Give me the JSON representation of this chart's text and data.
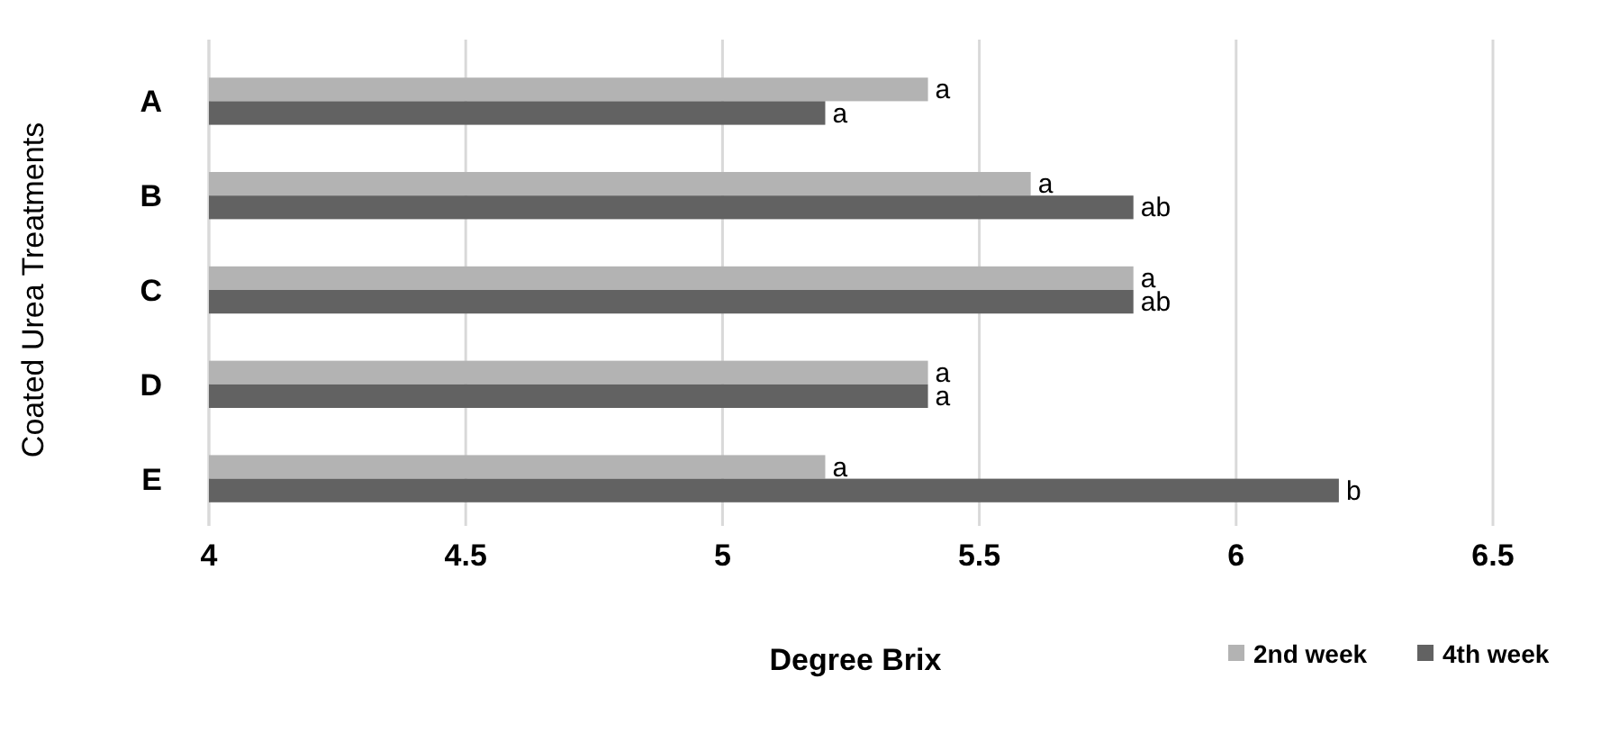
{
  "chart_data": {
    "type": "bar",
    "orientation": "horizontal",
    "xlabel": "Degree Brix",
    "ylabel": "Coated Urea Treatments",
    "categories": [
      "A",
      "B",
      "C",
      "D",
      "E"
    ],
    "series": [
      {
        "name": "2nd week",
        "color": "#b3b3b3",
        "values": [
          5.4,
          5.6,
          5.8,
          5.4,
          5.2
        ],
        "value_labels": [
          "a",
          "a",
          "a",
          "a",
          "a"
        ]
      },
      {
        "name": "4th week",
        "color": "#626262",
        "values": [
          5.2,
          5.8,
          5.8,
          5.4,
          6.2
        ],
        "value_labels": [
          "a",
          "ab",
          "ab",
          "a",
          "b"
        ]
      }
    ],
    "xlim": [
      4,
      6.5
    ],
    "xticks": [
      4,
      4.5,
      5,
      5.5,
      6,
      6.5
    ],
    "grid": "x",
    "legend": "bottom right"
  }
}
